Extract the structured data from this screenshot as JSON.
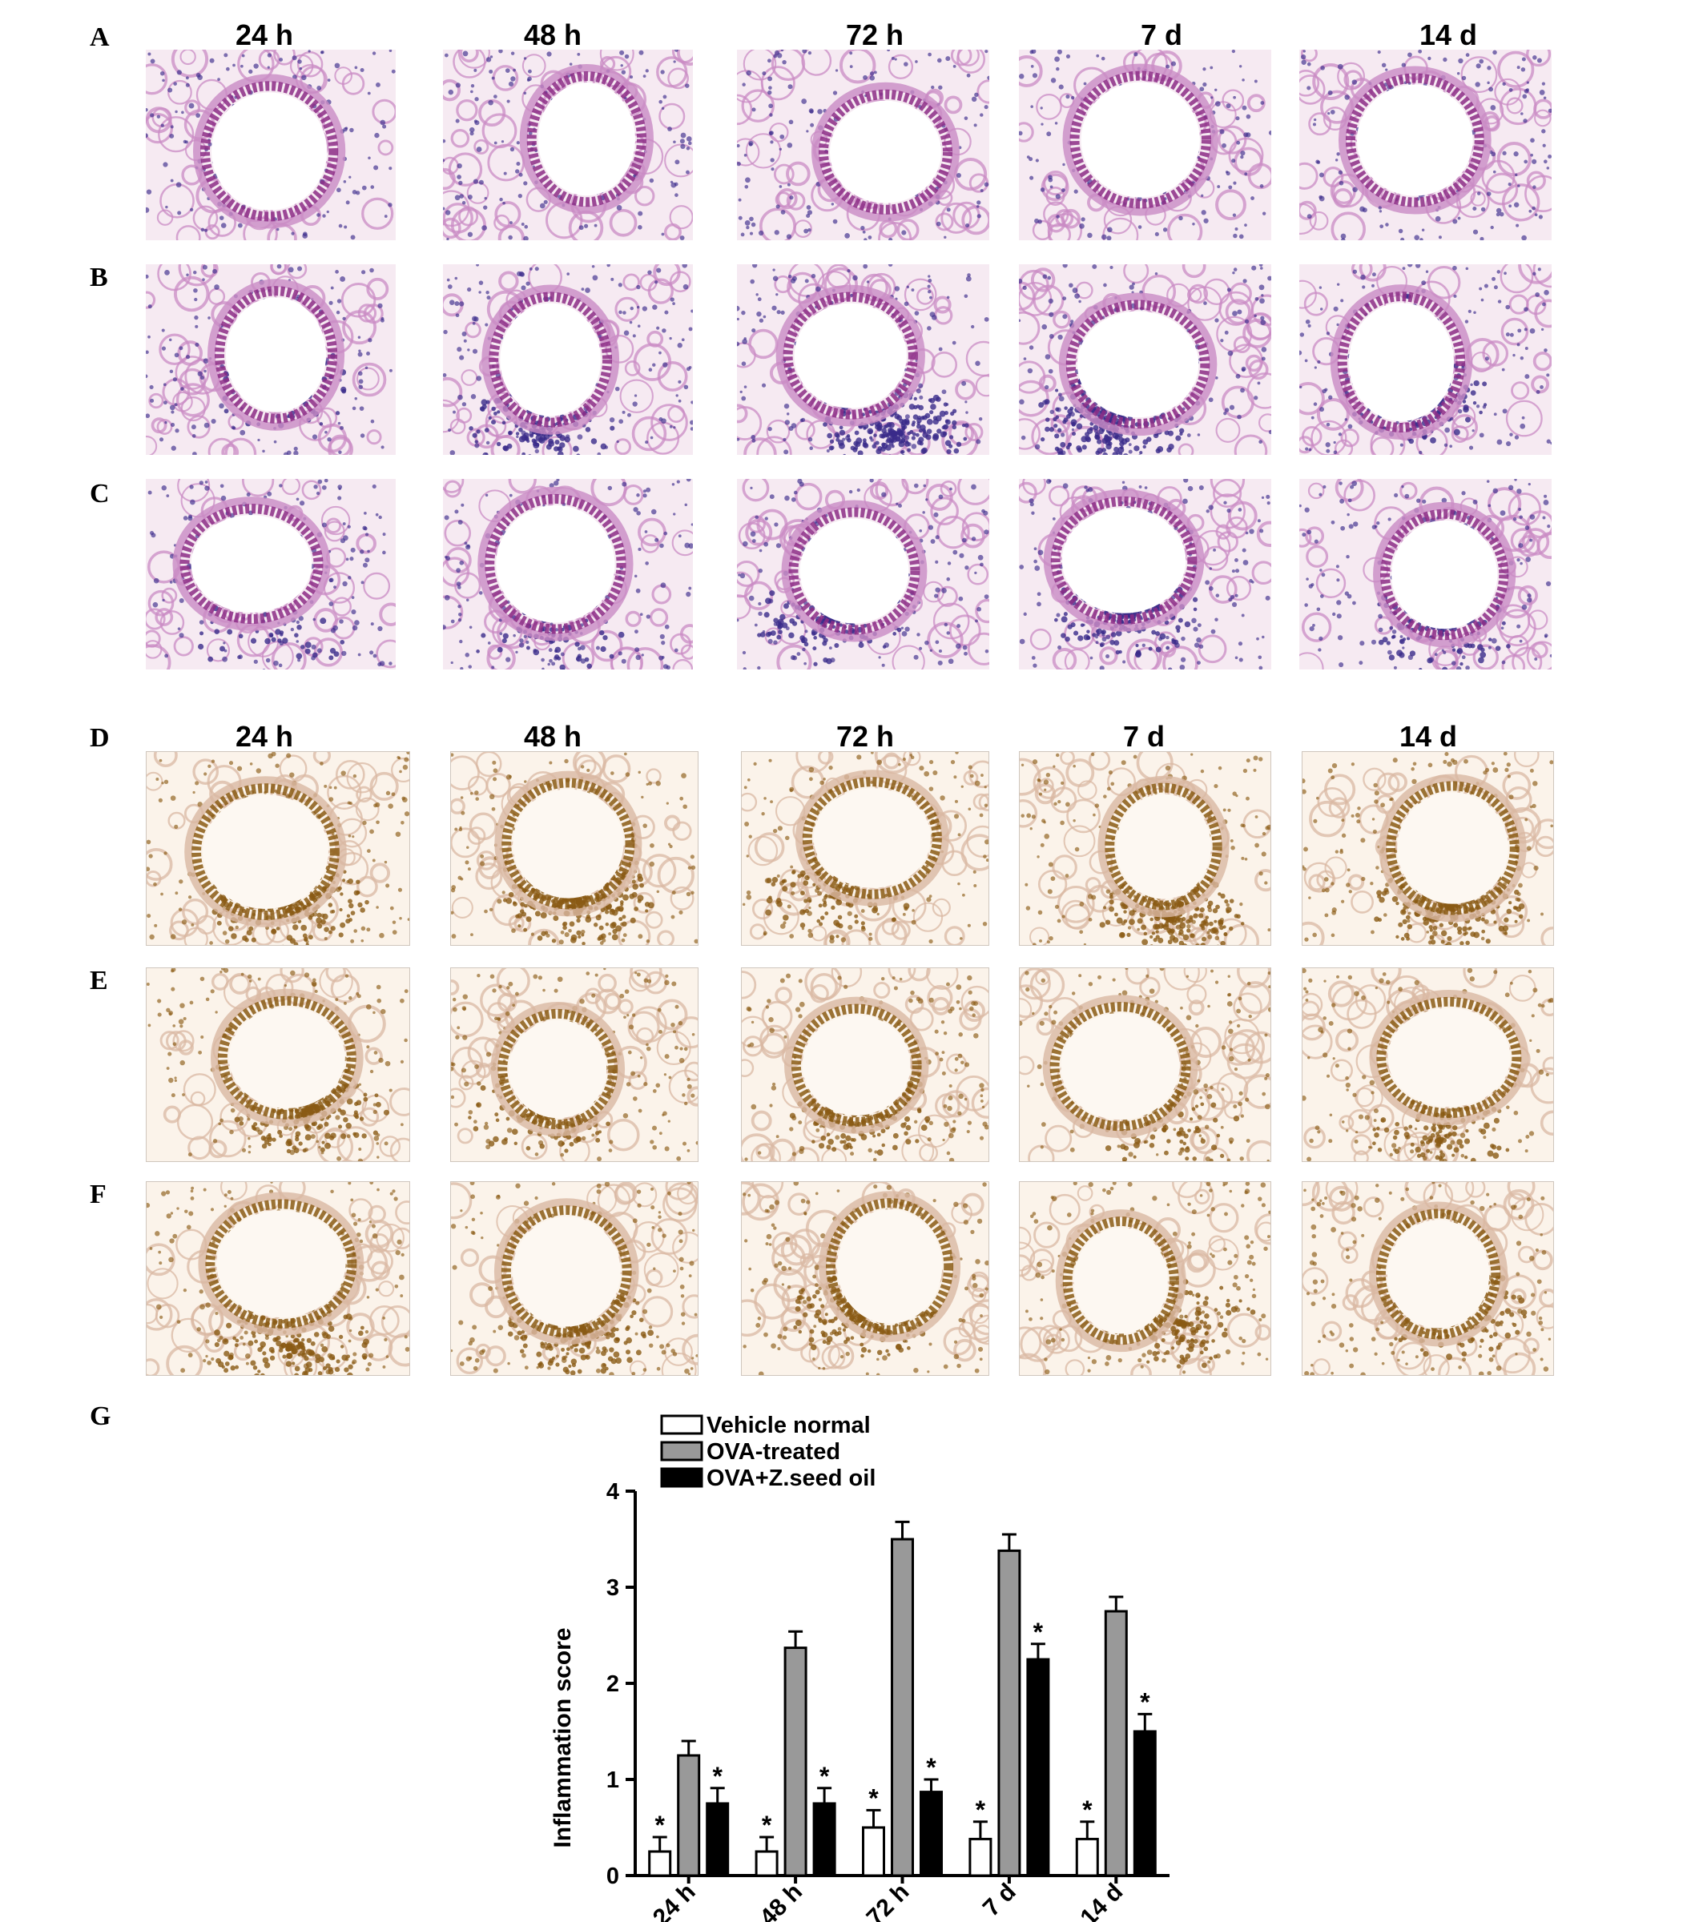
{
  "figure": {
    "panel_letters": [
      "A",
      "B",
      "C",
      "D",
      "E",
      "F",
      "G"
    ],
    "he_time_labels": [
      "24 h",
      "48 h",
      "72 h",
      "7 d",
      "14 d"
    ],
    "ihc_time_labels": [
      "24 h",
      "48 h",
      "72 h",
      "7 d",
      "14 d"
    ],
    "he_rows": [
      "A",
      "B",
      "C"
    ],
    "ihc_rows": [
      "D",
      "E",
      "F"
    ],
    "he_stain_colors": {
      "background": "#f6eaf2",
      "tissue": "#c98bc4",
      "epithelium": "#8c2d86",
      "nuclei": "#3a2a8a"
    },
    "ihc_stain_colors": {
      "background": "#fbf3ea",
      "tissue": "#d9b8a3",
      "nuclei": "#8a5a14"
    },
    "infiltrate_intensity": {
      "A": [
        0,
        0,
        0,
        0,
        0
      ],
      "B": [
        0.25,
        0.5,
        0.9,
        0.9,
        0.7
      ],
      "C": [
        0.15,
        0.25,
        0.45,
        0.7,
        0.4
      ],
      "D": [
        0.9,
        0.9,
        0.4,
        0.85,
        0.85
      ],
      "E": [
        0.8,
        0.5,
        0.7,
        0.3,
        0.4
      ],
      "F": [
        0.7,
        0.7,
        0.7,
        0.55,
        0.65
      ]
    }
  },
  "chart_data": {
    "type": "bar",
    "categories": [
      "24 h",
      "48 h",
      "72 h",
      "7 d",
      "14 d"
    ],
    "ylabel": "Inflammation score",
    "xlabel": "",
    "ylim": [
      0,
      4
    ],
    "yticks": [
      "0",
      "1",
      "2",
      "3",
      "4"
    ],
    "series": [
      {
        "name": "Vehicle normal",
        "values": [
          0.25,
          0.25,
          0.5,
          0.38,
          0.38
        ],
        "errors": [
          0.15,
          0.15,
          0.18,
          0.18,
          0.18
        ],
        "color": "#ffffff",
        "stars": [
          true,
          true,
          true,
          true,
          true
        ]
      },
      {
        "name": "OVA-treated",
        "values": [
          1.25,
          2.37,
          3.5,
          3.38,
          2.75
        ],
        "errors": [
          0.15,
          0.17,
          0.18,
          0.17,
          0.15
        ],
        "color": "#999999",
        "stars": [
          false,
          false,
          false,
          false,
          false
        ]
      },
      {
        "name": "OVA+Z.seed oil",
        "values": [
          0.75,
          0.75,
          0.87,
          2.25,
          1.5
        ],
        "errors": [
          0.16,
          0.16,
          0.13,
          0.16,
          0.18
        ],
        "color": "#000000",
        "stars": [
          true,
          true,
          true,
          true,
          true
        ]
      }
    ],
    "significance_marker": "*",
    "legend_position": "top-left"
  }
}
